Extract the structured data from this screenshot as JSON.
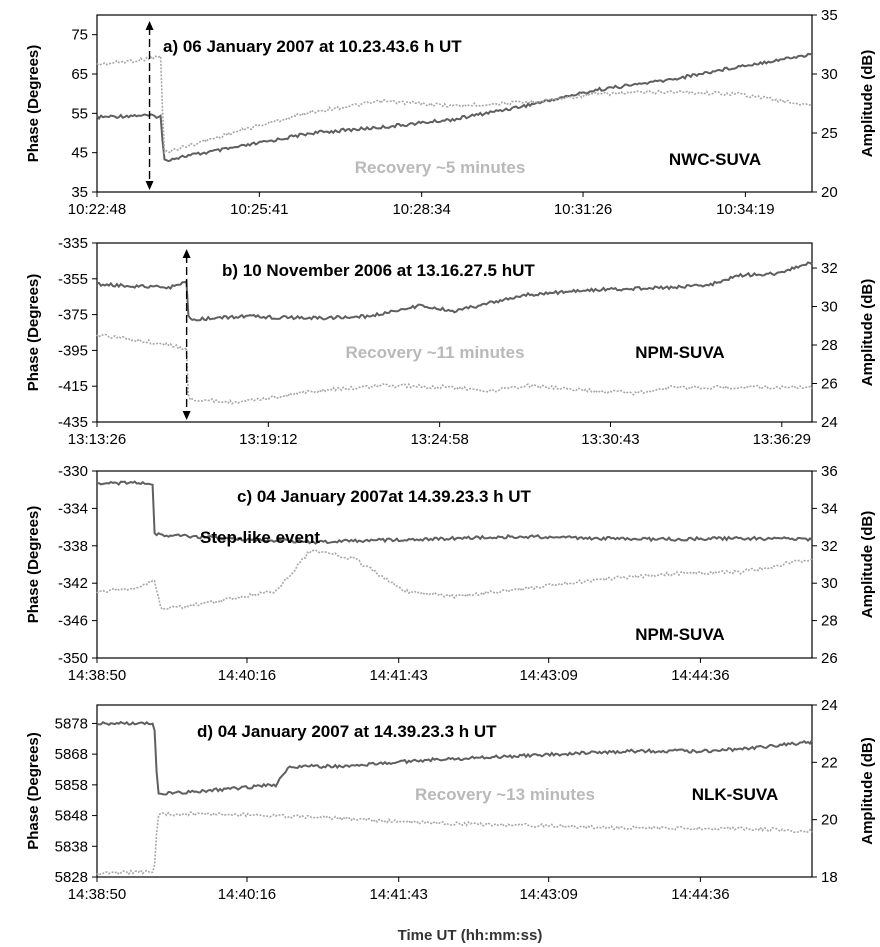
{
  "figure": {
    "xlabel": "Time UT (hh:mm:ss)"
  },
  "chart_data": [
    {
      "type": "line",
      "title": "a) 06 January 2007 at 10.23.43.6 h UT",
      "station": "NWC-SUVA",
      "annotation": "Recovery ~5 minutes",
      "ylabel": "Phase (Degrees)",
      "y2label": "Amplitude (dB)",
      "x_ticks": [
        "10:22:48",
        "10:25:41",
        "10:28:34",
        "10:31:26",
        "10:34:19"
      ],
      "xlim": [
        "10:22:48",
        "10:35:30"
      ],
      "ylim": [
        35,
        80
      ],
      "y_ticks": [
        35,
        45,
        55,
        65,
        75
      ],
      "y2lim": [
        20,
        35
      ],
      "y2_ticks": [
        20,
        25,
        30,
        35
      ],
      "event_time": "10:23:44",
      "series": [
        {
          "axis": "left",
          "values": [
            [
              0,
              54
            ],
            [
              0.06,
              54.5
            ],
            [
              0.09,
              54.2
            ],
            [
              0.093,
              43
            ],
            [
              0.12,
              44
            ],
            [
              0.2,
              46.5
            ],
            [
              0.3,
              50
            ],
            [
              0.4,
              51.5
            ],
            [
              0.5,
              53.5
            ],
            [
              0.6,
              57
            ],
            [
              0.7,
              61
            ],
            [
              0.8,
              63.5
            ],
            [
              0.9,
              67
            ],
            [
              1.0,
              70
            ]
          ]
        },
        {
          "axis": "right",
          "values": [
            [
              0,
              30.8
            ],
            [
              0.06,
              31.2
            ],
            [
              0.09,
              31.5
            ],
            [
              0.093,
              23.3
            ],
            [
              0.12,
              23.8
            ],
            [
              0.2,
              25.2
            ],
            [
              0.3,
              26.8
            ],
            [
              0.4,
              27.7
            ],
            [
              0.5,
              27.3
            ],
            [
              0.6,
              27.6
            ],
            [
              0.7,
              28.3
            ],
            [
              0.8,
              28.5
            ],
            [
              0.9,
              28.3
            ],
            [
              1.0,
              27.3
            ]
          ]
        }
      ]
    },
    {
      "type": "line",
      "title": "b) 10 November 2006 at 13.16.27.5 hUT",
      "station": "NPM-SUVA",
      "annotation": "Recovery ~11 minutes",
      "ylabel": "Phase (Degrees)",
      "y2label": "Amplitude (dB)",
      "x_ticks": [
        "13:13:26",
        "13:19:12",
        "13:24:58",
        "13:30:43",
        "13:36:29"
      ],
      "xlim": [
        "13:13:26",
        "13:37:30"
      ],
      "ylim": [
        -435,
        -335
      ],
      "y_ticks": [
        -435,
        -415,
        -395,
        -375,
        -355,
        -335
      ],
      "y2lim": [
        24,
        33.3
      ],
      "y2_ticks": [
        24,
        26,
        28,
        30,
        32
      ],
      "event_time": "13:16:27",
      "series": [
        {
          "axis": "left",
          "values": [
            [
              0,
              -358
            ],
            [
              0.1,
              -360
            ],
            [
              0.125,
              -357
            ],
            [
              0.128,
              -378
            ],
            [
              0.2,
              -376
            ],
            [
              0.3,
              -377
            ],
            [
              0.38,
              -376
            ],
            [
              0.45,
              -370
            ],
            [
              0.5,
              -373
            ],
            [
              0.6,
              -364
            ],
            [
              0.7,
              -361
            ],
            [
              0.8,
              -360
            ],
            [
              0.86,
              -358
            ],
            [
              0.9,
              -353
            ],
            [
              0.95,
              -352
            ],
            [
              1.0,
              -346
            ]
          ]
        },
        {
          "axis": "right",
          "values": [
            [
              0,
              28.5
            ],
            [
              0.05,
              28.3
            ],
            [
              0.1,
              28.0
            ],
            [
              0.125,
              27.8
            ],
            [
              0.128,
              25.2
            ],
            [
              0.2,
              25.0
            ],
            [
              0.3,
              25.6
            ],
            [
              0.4,
              25.9
            ],
            [
              0.5,
              25.8
            ],
            [
              0.55,
              25.6
            ],
            [
              0.6,
              25.9
            ],
            [
              0.7,
              25.6
            ],
            [
              0.75,
              25.5
            ],
            [
              0.8,
              25.8
            ],
            [
              0.9,
              25.8
            ],
            [
              1.0,
              25.8
            ]
          ]
        }
      ]
    },
    {
      "type": "line",
      "title": "c) 04 January 2007at 14.39.23.3 h UT",
      "station": "NPM-SUVA",
      "annotation": "Step-like event",
      "ylabel": "Phase (Degrees)",
      "y2label": "Amplitude (dB)",
      "x_ticks": [
        "14:38:50",
        "14:40:16",
        "14:41:43",
        "14:43:09",
        "14:44:36"
      ],
      "xlim": [
        "14:38:50",
        "14:45:40"
      ],
      "ylim": [
        -350,
        -330
      ],
      "y_ticks": [
        -350,
        -346,
        -342,
        -338,
        -334,
        -330
      ],
      "y2lim": [
        26,
        36
      ],
      "y2_ticks": [
        26,
        28,
        30,
        32,
        34,
        36
      ],
      "event_time": "14:39:23",
      "series": [
        {
          "axis": "left",
          "values": [
            [
              0,
              -331.3
            ],
            [
              0.06,
              -331.3
            ],
            [
              0.078,
              -331.4
            ],
            [
              0.08,
              -336.8
            ],
            [
              0.2,
              -337.3
            ],
            [
              0.3,
              -337.6
            ],
            [
              0.4,
              -337.4
            ],
            [
              0.5,
              -337.2
            ],
            [
              0.6,
              -337
            ],
            [
              0.7,
              -337.2
            ],
            [
              0.8,
              -337.3
            ],
            [
              0.9,
              -337.2
            ],
            [
              1.0,
              -337.3
            ]
          ]
        },
        {
          "axis": "right",
          "values": [
            [
              0,
              29.5
            ],
            [
              0.06,
              29.8
            ],
            [
              0.08,
              30.2
            ],
            [
              0.09,
              28.6
            ],
            [
              0.15,
              28.9
            ],
            [
              0.25,
              29.6
            ],
            [
              0.3,
              31.8
            ],
            [
              0.36,
              31.3
            ],
            [
              0.43,
              29.6
            ],
            [
              0.5,
              29.3
            ],
            [
              0.6,
              29.7
            ],
            [
              0.7,
              30.2
            ],
            [
              0.8,
              30.5
            ],
            [
              0.9,
              30.6
            ],
            [
              1.0,
              31.3
            ]
          ]
        }
      ]
    },
    {
      "type": "line",
      "title": "d) 04 January 2007 at 14.39.23.3 h UT",
      "station": "NLK-SUVA",
      "annotation": "Recovery ~13 minutes",
      "ylabel": "Phase (Degrees)",
      "y2label": "Amplitude (dB)",
      "x_ticks": [
        "14:38:50",
        "14:40:16",
        "14:41:43",
        "14:43:09",
        "14:44:36"
      ],
      "xlim": [
        "14:38:50",
        "14:45:40"
      ],
      "ylim": [
        5828,
        5884
      ],
      "y_ticks": [
        5828,
        5838,
        5848,
        5858,
        5868,
        5878
      ],
      "y2lim": [
        18,
        24
      ],
      "y2_ticks": [
        18,
        20,
        22,
        24
      ],
      "event_time": "14:39:23",
      "series": [
        {
          "axis": "left",
          "values": [
            [
              0,
              5878
            ],
            [
              0.08,
              5878
            ],
            [
              0.085,
              5855
            ],
            [
              0.15,
              5856
            ],
            [
              0.25,
              5858
            ],
            [
              0.27,
              5864
            ],
            [
              0.35,
              5864
            ],
            [
              0.45,
              5866
            ],
            [
              0.55,
              5867
            ],
            [
              0.65,
              5868
            ],
            [
              0.75,
              5869
            ],
            [
              0.85,
              5869
            ],
            [
              0.92,
              5870
            ],
            [
              1.0,
              5872
            ]
          ]
        },
        {
          "axis": "right",
          "values": [
            [
              0,
              18.1
            ],
            [
              0.08,
              18.2
            ],
            [
              0.085,
              20.2
            ],
            [
              0.15,
              20.2
            ],
            [
              0.3,
              20.1
            ],
            [
              0.45,
              19.9
            ],
            [
              0.6,
              19.8
            ],
            [
              0.75,
              19.7
            ],
            [
              0.9,
              19.7
            ],
            [
              1.0,
              19.6
            ]
          ]
        }
      ]
    }
  ]
}
